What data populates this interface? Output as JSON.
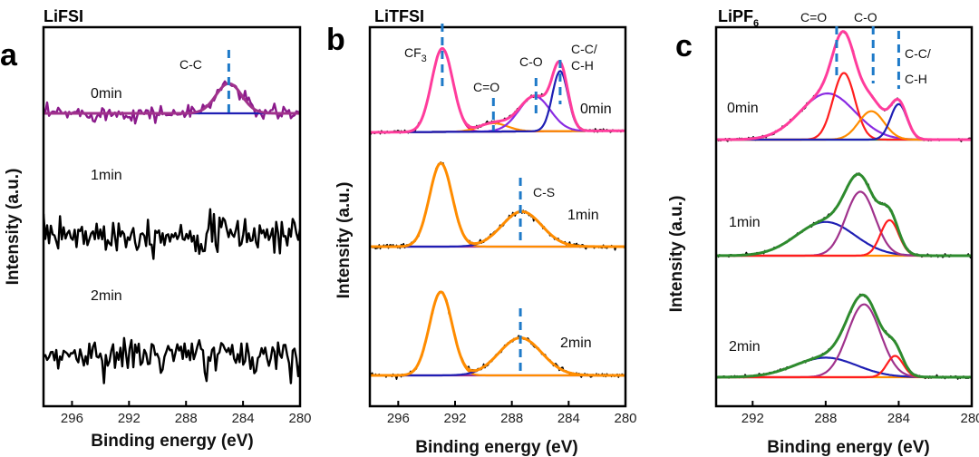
{
  "chart_data": [
    {
      "type": "line",
      "panel": "a",
      "title": "LiFSI",
      "xlabel": "Binding energy (eV)",
      "ylabel": "Intensity (a.u.)",
      "xlim": [
        298,
        280
      ],
      "xticks": [
        296,
        292,
        288,
        284,
        280
      ],
      "peak_markers": [
        {
          "label": "C-C",
          "x": 285.0
        }
      ],
      "traces": [
        {
          "name": "0min",
          "raw_color": "#8B1A8B",
          "noise": 0.32,
          "components": [
            {
              "center": 285.0,
              "width": 0.9,
              "height": 0.55,
              "color": "#1f1fb4"
            }
          ],
          "background": {
            "start": 0.0,
            "end": 0.0,
            "color": "#1f1fb4"
          },
          "fit_color": "#a0328c"
        },
        {
          "name": "1min",
          "raw_color": "#000000",
          "noise": 0.75,
          "components": [],
          "background": null,
          "fit_color": null
        },
        {
          "name": "2min",
          "raw_color": "#000000",
          "noise": 0.75,
          "components": [],
          "background": null,
          "fit_color": null
        }
      ]
    },
    {
      "type": "line",
      "panel": "b",
      "title": "LiTFSI",
      "xlabel": "Binding energy (eV)",
      "ylabel": "Intensity (a.u.)",
      "xlim": [
        298,
        280
      ],
      "xticks": [
        296,
        292,
        288,
        284,
        280
      ],
      "peak_markers": [
        {
          "label": "CF3",
          "label_main": "CF",
          "label_sub": "3",
          "x": 292.9
        },
        {
          "label": "C=O",
          "x": 289.3
        },
        {
          "label": "C-O",
          "x": 286.3
        },
        {
          "label": "C-C/ C-H",
          "label_lines": [
            "C-C/",
            "C-H"
          ],
          "x": 284.6
        },
        {
          "label": "C-S",
          "x": 287.4
        }
      ],
      "traces": [
        {
          "name": "0min",
          "raw_color": "#000000",
          "noise": 0.05,
          "components": [
            {
              "center": 292.9,
              "width": 0.75,
              "height": 1.0,
              "color": "#e8127c"
            },
            {
              "center": 289.3,
              "width": 1.0,
              "height": 0.1,
              "color": "#ff8c00"
            },
            {
              "center": 286.4,
              "width": 1.1,
              "height": 0.42,
              "color": "#8a2be2"
            },
            {
              "center": 284.6,
              "width": 0.55,
              "height": 0.72,
              "color": "#1f1fb4"
            }
          ],
          "background": {
            "start": 0.0,
            "end": 0.02,
            "color": "#2e8b2e"
          },
          "fit_color": "#ff3c9c"
        },
        {
          "name": "1min",
          "raw_color": "#000000",
          "noise": 0.06,
          "components": [
            {
              "center": 293.0,
              "width": 0.8,
              "height": 1.0,
              "color": "#ff8c00"
            },
            {
              "center": 287.3,
              "width": 1.4,
              "height": 0.42,
              "color": "#1f1fb4"
            }
          ],
          "background": {
            "start": 0.0,
            "end": 0.0,
            "color": "#a0328c"
          },
          "fit_color": "#ff8c00"
        },
        {
          "name": "2min",
          "raw_color": "#000000",
          "noise": 0.06,
          "components": [
            {
              "center": 293.0,
              "width": 0.8,
              "height": 1.0,
              "color": "#ff8c00"
            },
            {
              "center": 287.4,
              "width": 1.5,
              "height": 0.45,
              "color": "#1f1fb4"
            }
          ],
          "background": {
            "start": 0.0,
            "end": 0.0,
            "color": "#a0328c"
          },
          "fit_color": "#ff8c00"
        }
      ]
    },
    {
      "type": "line",
      "panel": "c",
      "title": "LiPF6",
      "title_main": "LiPF",
      "title_sub": "6",
      "xlabel": "Binding energy (eV)",
      "ylabel": "Intensity (a.u.)",
      "xlim": [
        294,
        280
      ],
      "xticks": [
        292,
        288,
        284,
        280
      ],
      "peak_markers": [
        {
          "label": "C=O",
          "x": 287.4
        },
        {
          "label": "C-O",
          "x": 285.4
        },
        {
          "label": "C-C/ C-H",
          "label_lines": [
            "C-C/",
            "C-H"
          ],
          "x": 284.0
        }
      ],
      "traces": [
        {
          "name": "0min",
          "raw_color": "#000000",
          "noise": 0.04,
          "components": [
            {
              "center": 287.9,
              "width": 1.5,
              "height": 0.52,
              "color": "#8a2be2"
            },
            {
              "center": 287.0,
              "width": 0.6,
              "height": 0.75,
              "color": "#ff1e1e"
            },
            {
              "center": 285.5,
              "width": 0.7,
              "height": 0.32,
              "color": "#ff8c00"
            },
            {
              "center": 284.0,
              "width": 0.45,
              "height": 0.4,
              "color": "#1f1fb4"
            }
          ],
          "background": {
            "start": 0.0,
            "end": 0.0,
            "color": "#2e8b2e"
          },
          "fit_color": "#ff3c9c"
        },
        {
          "name": "1min",
          "raw_color": "#000000",
          "noise": 0.04,
          "components": [
            {
              "center": 288.0,
              "width": 1.6,
              "height": 0.38,
              "color": "#1f1fb4"
            },
            {
              "center": 286.1,
              "width": 0.8,
              "height": 0.72,
              "color": "#a0328c"
            },
            {
              "center": 284.5,
              "width": 0.5,
              "height": 0.4,
              "color": "#ff1e1e"
            }
          ],
          "background": {
            "start": 0.0,
            "end": 0.0,
            "color": "#ff8c00"
          },
          "fit_color": "#2e8b2e"
        },
        {
          "name": "2min",
          "raw_color": "#000000",
          "noise": 0.04,
          "components": [
            {
              "center": 288.0,
              "width": 1.7,
              "height": 0.22,
              "color": "#1f1fb4"
            },
            {
              "center": 285.9,
              "width": 0.9,
              "height": 0.82,
              "color": "#a0328c"
            },
            {
              "center": 284.2,
              "width": 0.45,
              "height": 0.24,
              "color": "#ff1e1e"
            }
          ],
          "background": {
            "start": 0.0,
            "end": 0.0,
            "color": "#ff8c00"
          },
          "fit_color": "#2e8b2e"
        }
      ]
    }
  ]
}
